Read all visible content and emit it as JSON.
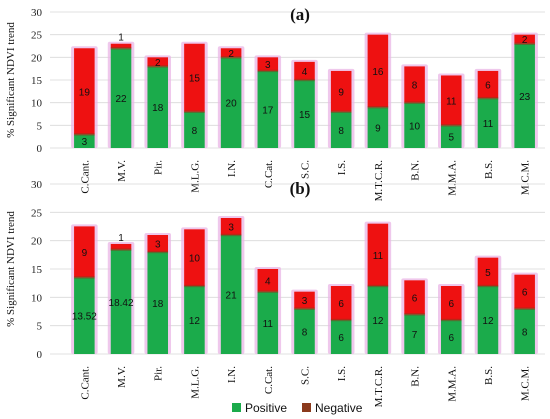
{
  "chart_data": [
    {
      "type": "bar",
      "stacked": true,
      "panel_label": "(a)",
      "ylabel": "% Significant NDVI trend",
      "ylim": [
        0,
        30
      ],
      "yticks": [
        0,
        5,
        10,
        15,
        20,
        25,
        30
      ],
      "categories": [
        "C.Cant.",
        "M.V.",
        "Pir.",
        "M.L.G.",
        "I.N.",
        "C.Cat.",
        "S.C.",
        "I.S.",
        "M.T.C.R.",
        "B.N.",
        "M.M.A.",
        "B.S.",
        "M.C.M."
      ],
      "series": [
        {
          "name": "Positive",
          "values": [
            3,
            22,
            18,
            8,
            20,
            17,
            15,
            8,
            9,
            10,
            5,
            11,
            23
          ],
          "labels": [
            "3",
            "22",
            "18",
            "8",
            "20",
            "17",
            "15",
            "8",
            "9",
            "10",
            "5",
            "11",
            "23"
          ]
        },
        {
          "name": "Negative",
          "values": [
            19,
            1,
            2,
            15,
            2,
            3,
            4,
            9,
            16,
            8,
            11,
            6,
            2
          ],
          "labels": [
            "19",
            "1",
            "2",
            "15",
            "2",
            "3",
            "4",
            "9",
            "16",
            "8",
            "11",
            "6",
            "2"
          ]
        }
      ]
    },
    {
      "type": "bar",
      "stacked": true,
      "panel_label": "(b)",
      "ylabel": "% Significant NDVI trend",
      "ylim": [
        0,
        30
      ],
      "yticks": [
        0,
        5,
        10,
        15,
        20,
        25,
        30
      ],
      "categories": [
        "C.Cant.",
        "M.V.",
        "Pir.",
        "M.L.G.",
        "I.N.",
        "C.Cat.",
        "S.C.",
        "I.S.",
        "M.T.C.R.",
        "B.N.",
        "M.M.A.",
        "B.S.",
        "M.C.M."
      ],
      "series": [
        {
          "name": "Positive",
          "values": [
            13.52,
            18.42,
            18,
            12,
            21,
            11,
            8,
            6,
            12,
            7,
            6,
            12,
            8
          ],
          "labels": [
            "13.52",
            "18.42",
            "18",
            "12",
            "21",
            "11",
            "8",
            "6",
            "12",
            "7",
            "6",
            "12",
            "8"
          ]
        },
        {
          "name": "Negative",
          "values": [
            9,
            1,
            3,
            10,
            3,
            4,
            3,
            6,
            11,
            6,
            6,
            5,
            6
          ],
          "labels": [
            "9",
            "1",
            "3",
            "10",
            "3",
            "4",
            "3",
            "6",
            "11",
            "6",
            "6",
            "5",
            "6"
          ]
        }
      ]
    }
  ],
  "legend": {
    "position": "bottom-center",
    "items": [
      {
        "name": "Positive",
        "color": "#1bab4b"
      },
      {
        "name": "Negative",
        "color": "#8b3a1c"
      }
    ]
  },
  "colors": {
    "positive": "#1bab4b",
    "negative": "#ee1111",
    "halo": "#e9b6e6",
    "grid": "#d9d9d9"
  }
}
